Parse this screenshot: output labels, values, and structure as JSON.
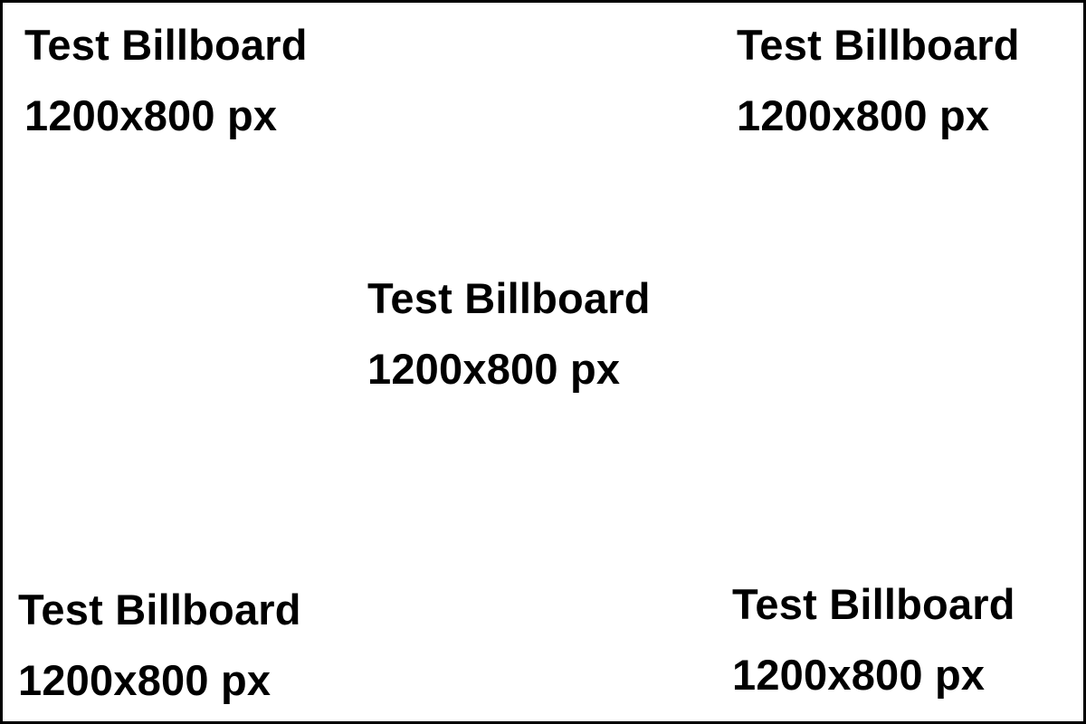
{
  "billboard": {
    "labels": [
      {
        "title": "Test Billboard",
        "size": "1200x800 px"
      },
      {
        "title": "Test Billboard",
        "size": "1200x800 px"
      },
      {
        "title": "Test Billboard",
        "size": "1200x800 px"
      },
      {
        "title": "Test Billboard",
        "size": "1200x800 px"
      },
      {
        "title": "Test Billboard",
        "size": "1200x800 px"
      }
    ]
  }
}
